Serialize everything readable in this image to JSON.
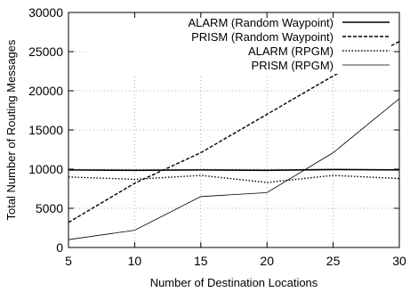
{
  "chart_data": {
    "type": "line",
    "xlabel": "Number of Destination Locations",
    "ylabel": "Total Number of Routing Messages",
    "x": [
      5,
      10,
      15,
      20,
      25,
      30
    ],
    "xlim": [
      5,
      30
    ],
    "ylim": [
      0,
      30000
    ],
    "x_ticks": [
      "5",
      "10",
      "15",
      "20",
      "25",
      "30"
    ],
    "y_ticks": [
      "0",
      "5000",
      "10000",
      "15000",
      "20000",
      "25000",
      "30000"
    ],
    "grid": true,
    "legend_position": "top-right",
    "series": [
      {
        "name": "ALARM (Random Waypoint)",
        "style": "solid",
        "values": [
          9900,
          9850,
          9900,
          9850,
          9950,
          9900
        ]
      },
      {
        "name": "PRISM (Random Waypoint)",
        "style": "dashed",
        "values": [
          3200,
          8200,
          12100,
          17000,
          21900,
          26300
        ]
      },
      {
        "name": "ALARM (RPGM)",
        "style": "dotted",
        "values": [
          9000,
          8700,
          9200,
          8300,
          9200,
          8800
        ]
      },
      {
        "name": "PRISM (RPGM)",
        "style": "thin",
        "values": [
          1000,
          2200,
          6500,
          7000,
          12100,
          19000
        ]
      }
    ]
  }
}
